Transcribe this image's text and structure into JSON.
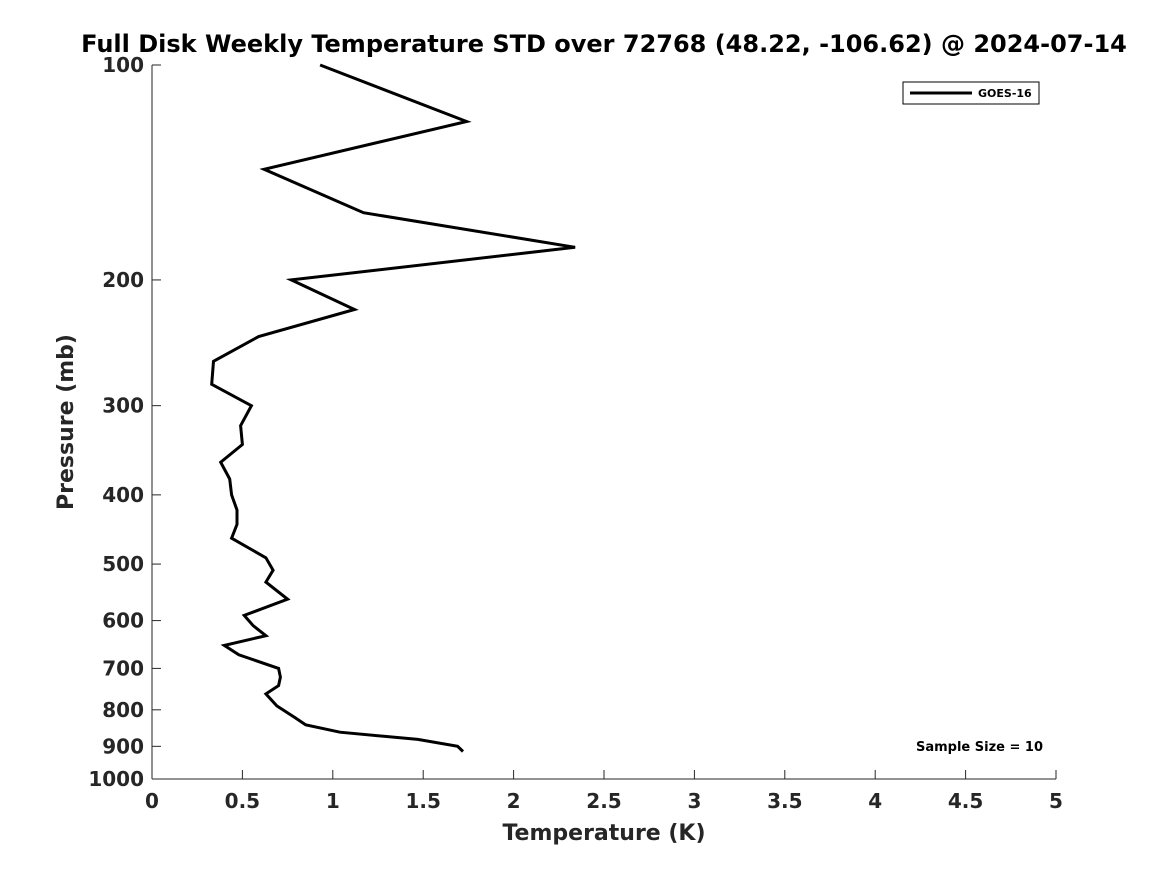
{
  "chart_data": {
    "type": "line",
    "title": "Full Disk Weekly Temperature STD over 72768 (48.22, -106.62) @ 2024-07-14",
    "xlabel": "Temperature (K)",
    "ylabel": "Pressure (mb)",
    "xlim": [
      0,
      5
    ],
    "ylim": [
      100,
      1000
    ],
    "y_scale": "log",
    "y_direction": "reversed",
    "x_ticks": [
      0,
      0.5,
      1,
      1.5,
      2,
      2.5,
      3,
      3.5,
      4,
      4.5,
      5
    ],
    "x_tick_labels": [
      "0",
      "0.5",
      "1",
      "1.5",
      "2",
      "2.5",
      "3",
      "3.5",
      "4",
      "4.5",
      "5"
    ],
    "y_ticks": [
      100,
      200,
      300,
      400,
      500,
      600,
      700,
      800,
      900,
      1000
    ],
    "y_tick_labels": [
      "100",
      "200",
      "300",
      "400",
      "500",
      "600",
      "700",
      "800",
      "900",
      "1000"
    ],
    "grid": false,
    "legend": {
      "placement": "top-right",
      "entries": [
        "GOES-16"
      ]
    },
    "annotation": "Sample Size = 10",
    "series": [
      {
        "name": "GOES-16",
        "color": "#000000",
        "points": [
          [
            0.93,
            100
          ],
          [
            1.74,
            120
          ],
          [
            0.62,
            140
          ],
          [
            1.17,
            161
          ],
          [
            2.34,
            180
          ],
          [
            0.77,
            200
          ],
          [
            1.12,
            220
          ],
          [
            0.59,
            240
          ],
          [
            0.34,
            260
          ],
          [
            0.33,
            280
          ],
          [
            0.55,
            300
          ],
          [
            0.49,
            320
          ],
          [
            0.5,
            340
          ],
          [
            0.38,
            360
          ],
          [
            0.43,
            380
          ],
          [
            0.44,
            400
          ],
          [
            0.47,
            420
          ],
          [
            0.47,
            440
          ],
          [
            0.44,
            460
          ],
          [
            0.63,
            490
          ],
          [
            0.67,
            510
          ],
          [
            0.63,
            530
          ],
          [
            0.75,
            560
          ],
          [
            0.51,
            590
          ],
          [
            0.56,
            610
          ],
          [
            0.63,
            630
          ],
          [
            0.4,
            650
          ],
          [
            0.48,
            670
          ],
          [
            0.7,
            700
          ],
          [
            0.71,
            720
          ],
          [
            0.7,
            740
          ],
          [
            0.63,
            760
          ],
          [
            0.69,
            790
          ],
          [
            0.79,
            820
          ],
          [
            0.85,
            840
          ],
          [
            1.04,
            860
          ],
          [
            1.47,
            880
          ],
          [
            1.69,
            900
          ],
          [
            1.72,
            915
          ]
        ]
      }
    ]
  }
}
